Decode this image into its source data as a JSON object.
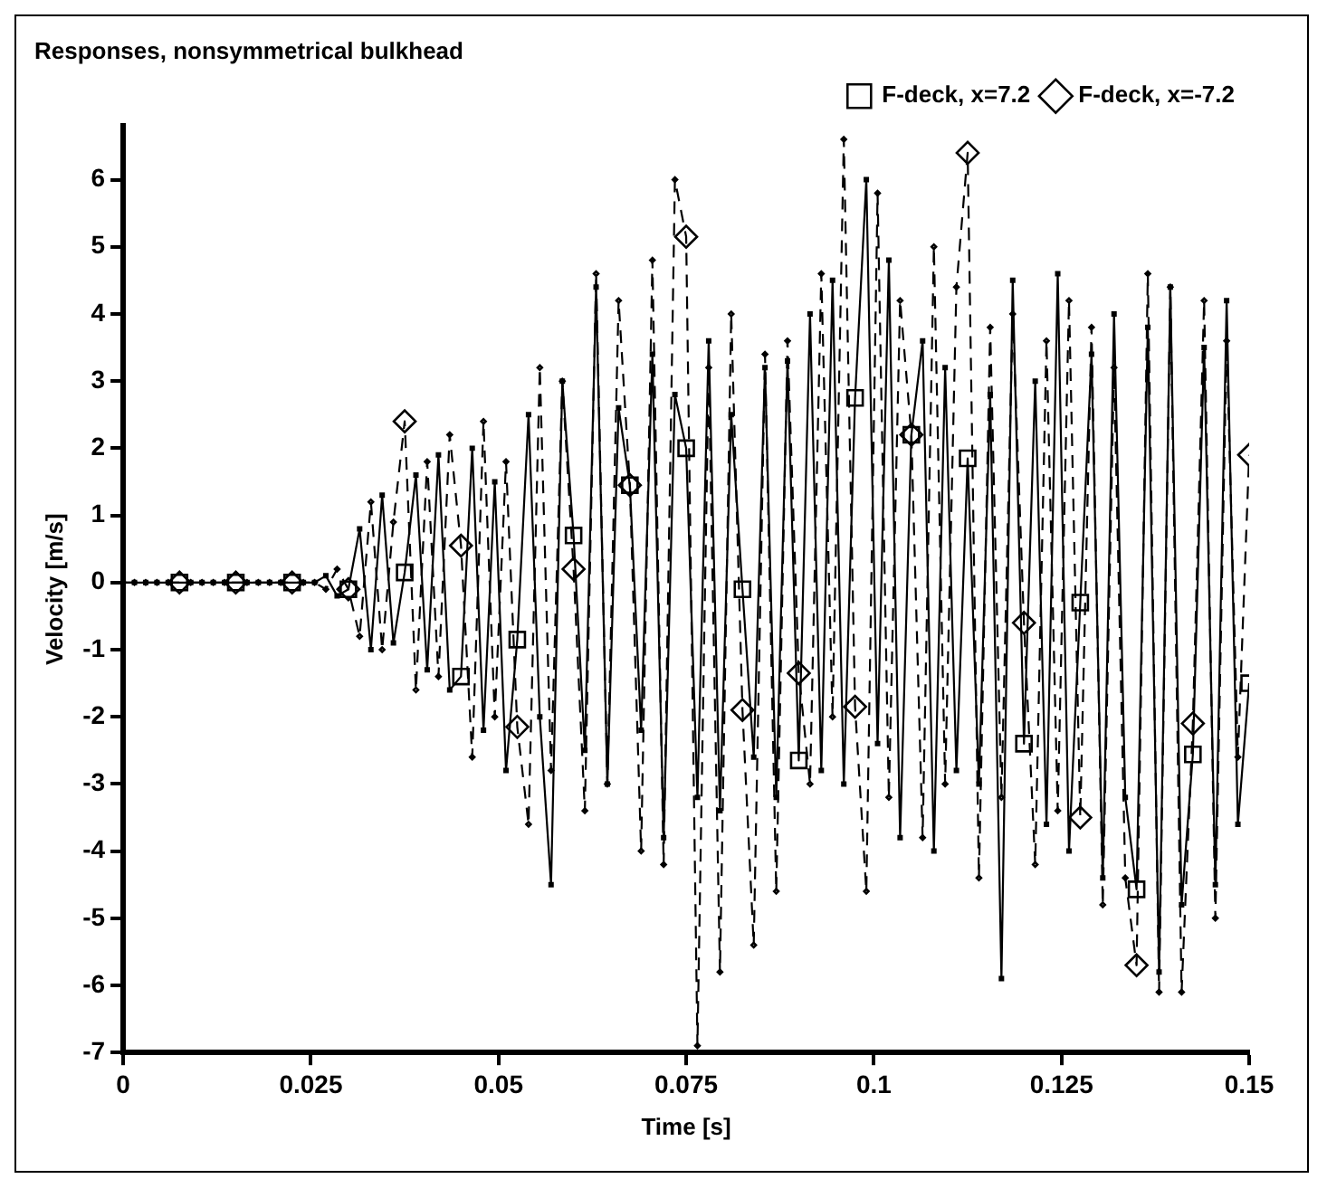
{
  "chart_data": {
    "type": "line",
    "title": "Responses, nonsymmetrical bulkhead",
    "xlabel": "Time [s]",
    "ylabel": "Velocity [m/s]",
    "x": [
      0,
      0.0015,
      0.003,
      0.0045,
      0.006,
      0.0075,
      0.009,
      0.0105,
      0.012,
      0.0135,
      0.015,
      0.0165,
      0.018,
      0.0195,
      0.021,
      0.0225,
      0.024,
      0.0255,
      0.027,
      0.0285,
      0.03,
      0.0315,
      0.033,
      0.0345,
      0.036,
      0.0375,
      0.039,
      0.0405,
      0.042,
      0.0435,
      0.045,
      0.0465,
      0.048,
      0.0495,
      0.051,
      0.0525,
      0.054,
      0.0555,
      0.057,
      0.0585,
      0.06,
      0.0615,
      0.063,
      0.0645,
      0.066,
      0.0675,
      0.069,
      0.0705,
      0.072,
      0.0735,
      0.075,
      0.0765,
      0.078,
      0.0795,
      0.081,
      0.0825,
      0.084,
      0.0855,
      0.087,
      0.0885,
      0.09,
      0.0915,
      0.093,
      0.0945,
      0.096,
      0.0975,
      0.099,
      0.1005,
      0.102,
      0.1035,
      0.105,
      0.1065,
      0.108,
      0.1095,
      0.111,
      0.1125,
      0.114,
      0.1155,
      0.117,
      0.1185,
      0.12,
      0.1215,
      0.123,
      0.1245,
      0.126,
      0.1275,
      0.129,
      0.1305,
      0.132,
      0.1335,
      0.135,
      0.1365,
      0.138,
      0.1395,
      0.141,
      0.1425,
      0.144,
      0.1455,
      0.147,
      0.1485,
      0.15
    ],
    "series": [
      {
        "name": "F-deck, x=7.2",
        "color": "#000000",
        "marker": "square",
        "line_style": "solid",
        "values": [
          0,
          0,
          0,
          0,
          0,
          0,
          0,
          0,
          0,
          0,
          0,
          0,
          0,
          0,
          0,
          0,
          0,
          0,
          0.1,
          -0.2,
          -0.1,
          0.8,
          -1.0,
          1.3,
          -0.9,
          0.15,
          1.6,
          -1.3,
          1.9,
          -1.6,
          -1.4,
          2.0,
          -2.2,
          1.5,
          -2.8,
          -0.85,
          2.5,
          -2.0,
          -4.5,
          3.0,
          0.7,
          -2.5,
          4.4,
          -3.0,
          2.6,
          1.45,
          -2.2,
          3.4,
          -3.8,
          2.8,
          2.0,
          -3.2,
          3.6,
          -3.4,
          2.5,
          -0.1,
          -2.6,
          3.2,
          -3.2,
          3.3,
          -2.65,
          4.0,
          -2.8,
          4.5,
          -3.0,
          2.75,
          6.0,
          -2.4,
          4.8,
          -3.8,
          2.2,
          3.6,
          -4.0,
          3.2,
          -2.8,
          1.85,
          -3.0,
          2.8,
          -5.9,
          4.5,
          -2.4,
          3.0,
          -3.6,
          4.6,
          -4.0,
          -0.3,
          3.4,
          -4.4,
          4.0,
          -3.2,
          -4.57,
          3.8,
          -5.8,
          4.4,
          -4.8,
          -2.56,
          3.5,
          -4.5,
          4.2,
          -3.6,
          -1.5
        ]
      },
      {
        "name": "F-deck, x=-7.2",
        "color": "#000000",
        "marker": "diamond",
        "line_style": "dashed",
        "values": [
          0,
          0,
          0,
          0,
          0,
          0,
          0,
          0,
          0,
          0,
          0,
          0,
          0,
          0,
          0,
          0,
          0,
          0,
          -0.1,
          0.2,
          -0.1,
          -0.8,
          1.2,
          -1.0,
          0.9,
          2.4,
          -1.6,
          1.8,
          -1.4,
          2.2,
          0.55,
          -2.6,
          2.4,
          -2.0,
          1.8,
          -2.15,
          -3.6,
          3.2,
          -2.8,
          3.0,
          0.2,
          -3.4,
          4.6,
          -3.0,
          4.2,
          1.45,
          -4.0,
          4.8,
          -4.2,
          6.0,
          5.15,
          -6.9,
          3.2,
          -5.8,
          4.0,
          -1.9,
          -5.4,
          3.4,
          -4.6,
          3.6,
          -1.35,
          -3.0,
          4.6,
          -2.0,
          6.6,
          -1.85,
          -4.6,
          5.8,
          -3.2,
          4.2,
          2.2,
          -3.8,
          5.0,
          -3.0,
          4.4,
          6.4,
          -4.4,
          3.8,
          -3.2,
          4.0,
          -0.6,
          -4.2,
          3.6,
          -3.4,
          4.2,
          -3.5,
          3.8,
          -4.8,
          3.2,
          -4.4,
          -5.7,
          4.6,
          -6.1,
          4.4,
          -6.1,
          -2.1,
          4.2,
          -5.0,
          3.6,
          -2.6,
          1.9
        ]
      }
    ],
    "xlim": [
      0,
      0.15
    ],
    "xticks": [
      0,
      0.025,
      0.05,
      0.075,
      0.1,
      0.125,
      0.15
    ],
    "ylim": [
      -7,
      6.8
    ],
    "yticks": [
      -7,
      -6,
      -5,
      -4,
      -3,
      -2,
      -1,
      0,
      1,
      2,
      3,
      4,
      5,
      6
    ],
    "grid": false,
    "legend": "top right"
  }
}
